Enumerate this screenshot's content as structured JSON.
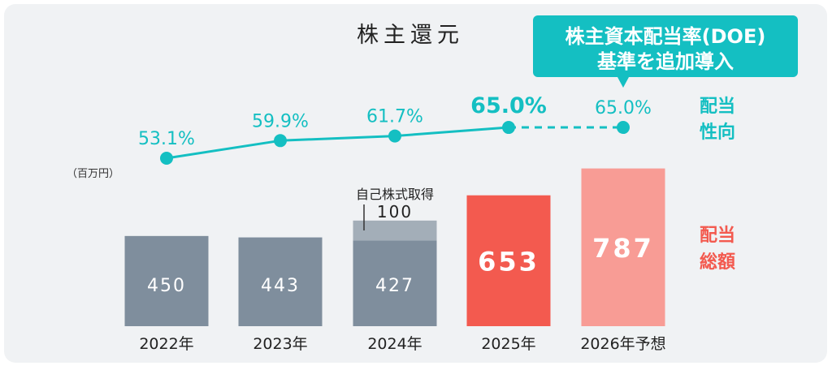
{
  "chart_data": {
    "type": "bar",
    "title": "株主還元",
    "unit_label": "（百万円）",
    "categories": [
      "2022年",
      "2023年",
      "2024年",
      "2025年",
      "2026年予想"
    ],
    "series": [
      {
        "name": "配当総額",
        "values": [
          450,
          443,
          427,
          653,
          787
        ],
        "colors": [
          "#7f8e9d",
          "#7f8e9d",
          "#7f8e9d",
          "#f35a4f",
          "#f89c95"
        ]
      },
      {
        "name": "自己株式取得",
        "values": [
          0,
          0,
          100,
          0,
          0
        ],
        "color": "#a3aeb8",
        "label_value": "100"
      },
      {
        "name": "配当性向",
        "type": "line",
        "values": [
          53.1,
          59.9,
          61.7,
          65.0,
          65.0
        ],
        "labels": [
          "53.1%",
          "59.9%",
          "61.7%",
          "65.0%",
          "65.0%"
        ],
        "highlight_index": 3,
        "dashed_from_index": 3,
        "color": "#14bfc2"
      }
    ],
    "legend": {
      "line_label_1": "配当",
      "line_label_2": "性向",
      "bar_label_1": "配当",
      "bar_label_2": "総額"
    },
    "buyback_label": "自己株式取得",
    "callout": {
      "line1": "株主資本配当率(DOE)",
      "line2": "基準を追加導入"
    },
    "bar_label_color": "#f35a4f",
    "line_color": "#14bfc2"
  }
}
